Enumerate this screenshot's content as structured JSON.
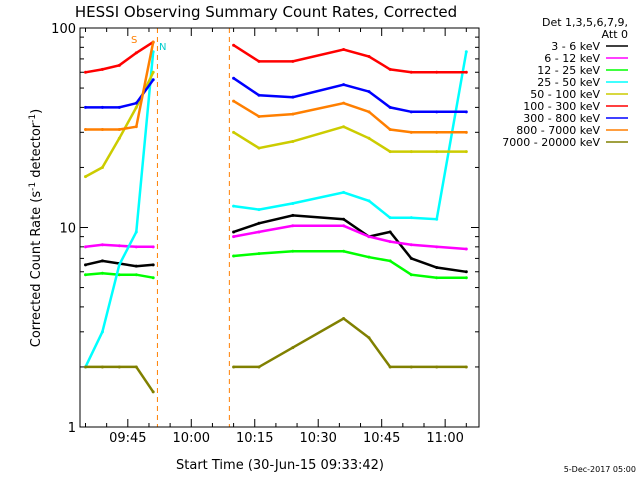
{
  "chart_data": {
    "type": "line",
    "title": "HESSI Observing Summary Count Rates, Corrected",
    "xlabel": "Start Time (30-Jun-15 09:33:42)",
    "ylabel": "Corrected Count Rate (s⁻¹ detector⁻¹)",
    "ylabel_main": "Corrected Count Rate (s",
    "ylabel_sup1": "-1",
    "ylabel_mid": " detector",
    "ylabel_sup2": "-1",
    "ylabel_end": ")",
    "yscale": "log",
    "ylim": [
      1,
      100
    ],
    "xlim": [
      "09:33:42",
      "11:08"
    ],
    "ytick_labels": [
      "1",
      "10",
      "100"
    ],
    "xtick_labels": [
      "09:45",
      "10:00",
      "10:15",
      "10:30",
      "10:45",
      "11:00"
    ],
    "legend_header": [
      "Det 1,3,5,6,7,9,",
      "Att 0"
    ],
    "legend_position": "right",
    "annotations": [
      "S",
      "N"
    ],
    "footer": "5-Dec-2017 05:00",
    "data_gaps": [
      [
        "09:52",
        "10:09"
      ]
    ],
    "series": [
      {
        "name": "3 - 6 keV",
        "color": "#000000",
        "values": [
          6.5,
          6.8,
          6.6,
          6.4,
          6.5,
          9.5,
          10.5,
          11.5,
          11,
          9,
          9.5,
          7.0,
          6.3,
          6.0
        ]
      },
      {
        "name": "6 - 12 keV",
        "color": "#ff00ff",
        "values": [
          8.0,
          8.2,
          8.1,
          8.0,
          8.0,
          9.0,
          9.5,
          10.2,
          10.2,
          9,
          8.5,
          8.2,
          8.0,
          7.8
        ]
      },
      {
        "name": "12 - 25 keV",
        "color": "#00ff00",
        "values": [
          5.8,
          5.9,
          5.8,
          5.8,
          5.6,
          7.2,
          7.4,
          7.6,
          7.6,
          7.1,
          6.8,
          5.8,
          5.6,
          5.6
        ]
      },
      {
        "name": "25 - 50 keV",
        "color": "#00ffff",
        "values": [
          2.0,
          3.0,
          6.5,
          9.5,
          76,
          12.8,
          12.3,
          13.2,
          15.0,
          13.6,
          11.2,
          11.2,
          11.0,
          76
        ]
      },
      {
        "name": "50 - 100 keV",
        "color": "#cccc00",
        "values": [
          18,
          20,
          28,
          40,
          60,
          30,
          25,
          27,
          32,
          28,
          24,
          24,
          24,
          24
        ]
      },
      {
        "name": "100 - 300 keV",
        "color": "#ff0000",
        "values": [
          60,
          62,
          65,
          75,
          85,
          82,
          68,
          68,
          78,
          72,
          62,
          60,
          60,
          60
        ]
      },
      {
        "name": "300 - 800 keV",
        "color": "#0000ff",
        "values": [
          40,
          40,
          40,
          42,
          55,
          56,
          46,
          45,
          52,
          48,
          40,
          38,
          38,
          38
        ]
      },
      {
        "name": "800 - 7000 keV",
        "color": "#ff7f00",
        "values": [
          31,
          31,
          31,
          32,
          85,
          43,
          36,
          37,
          42,
          38,
          31,
          30,
          30,
          30
        ]
      },
      {
        "name": "7000 - 20000 keV",
        "color": "#808000",
        "values": [
          2.0,
          2.0,
          2.0,
          2.0,
          1.5,
          2.0,
          2.0,
          2.5,
          3.5,
          2.8,
          2.0,
          2.0,
          2.0,
          2.0
        ]
      }
    ],
    "x_points": [
      "09:35",
      "09:39",
      "09:43",
      "09:47",
      "09:51",
      "10:10",
      "10:16",
      "10:24",
      "10:36",
      "10:42",
      "10:47",
      "10:52",
      "10:58",
      "11:05"
    ]
  }
}
